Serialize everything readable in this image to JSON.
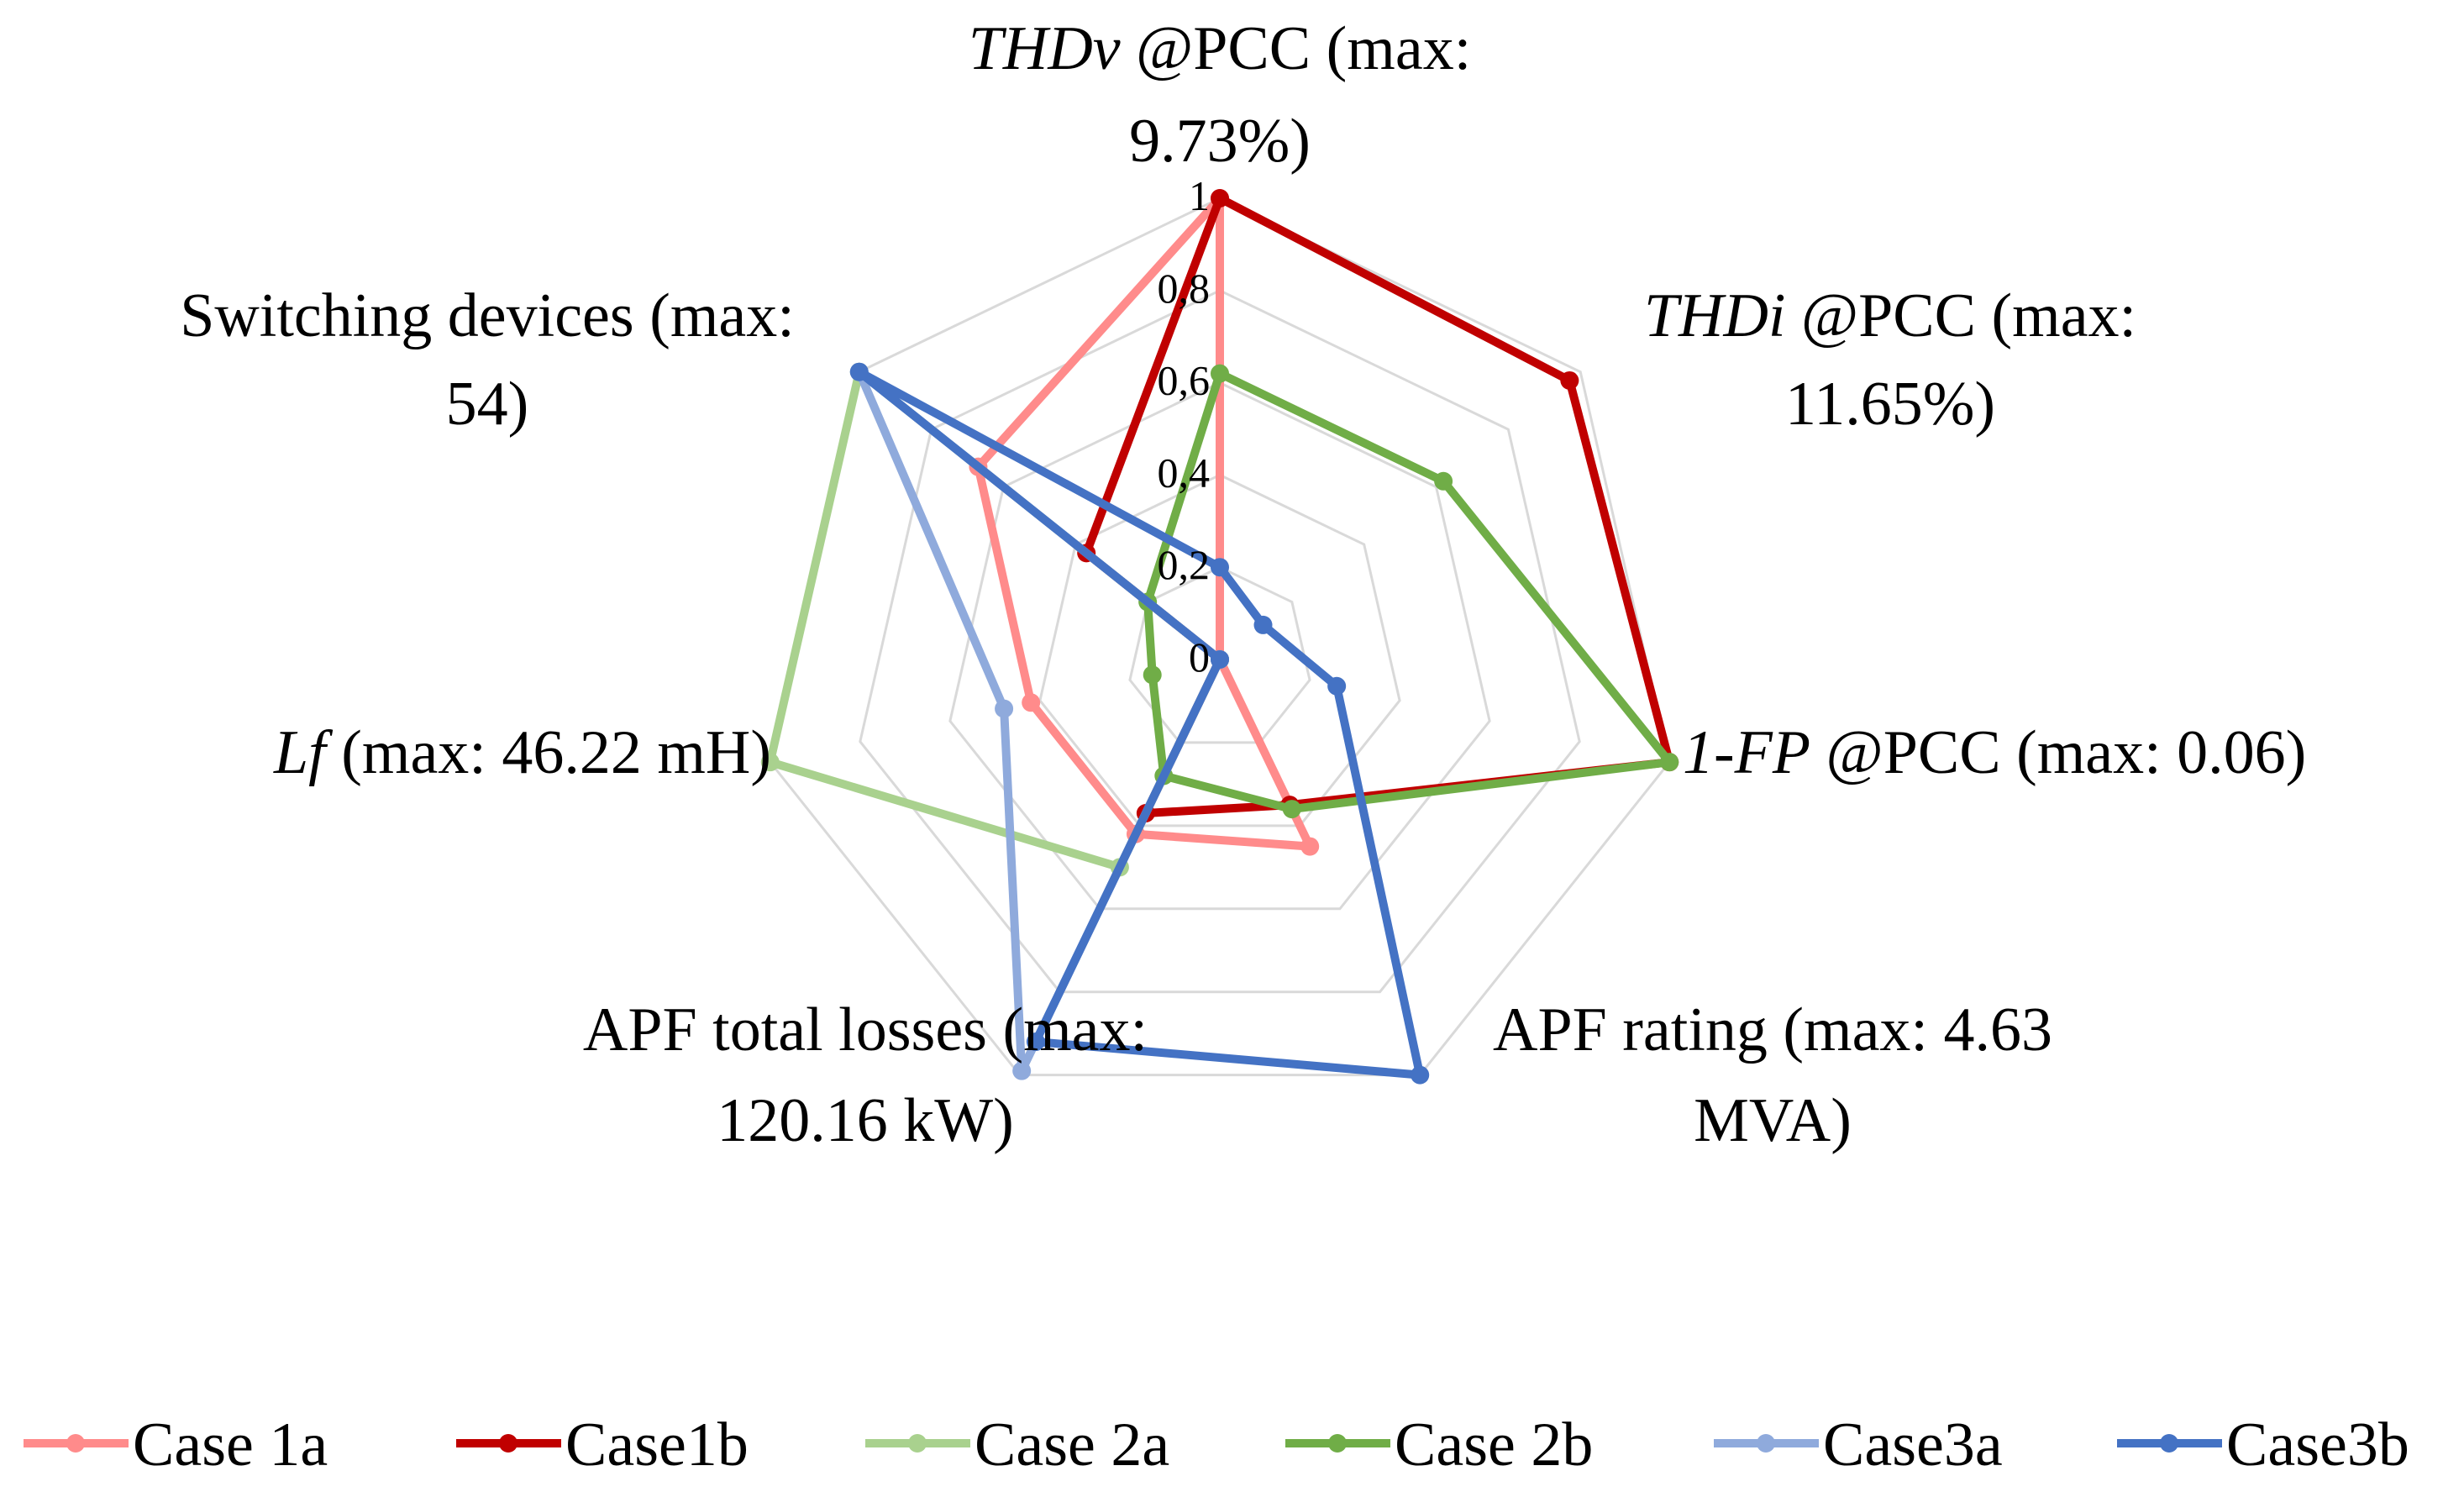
{
  "chart_data": {
    "type": "radar",
    "title": "",
    "axes": [
      {
        "italic": "THDv",
        "rest": " @PCC (max:",
        "line2": "9.73%)"
      },
      {
        "italic": "THDi",
        "rest": " @PCC (max:",
        "line2": "11.65%)"
      },
      {
        "italic": "1-FP",
        "rest": " @PCC (max: 0.06)",
        "line2": ""
      },
      {
        "italic": "",
        "rest": "APF rating (max: 4.63",
        "line2": "MVA)"
      },
      {
        "italic": "",
        "rest": "APF total losses (max:",
        "line2": "120.16 kW)"
      },
      {
        "italic": "Lf",
        "rest": " (max: 46.22 mH)",
        "line2": ""
      },
      {
        "italic": "",
        "rest": "Switching devices (max:",
        "line2": "54)"
      }
    ],
    "ticks": [
      "0",
      "0,2",
      "0,4",
      "0,6",
      "0,8",
      "1"
    ],
    "tick_values": [
      0,
      0.2,
      0.4,
      0.6,
      0.8,
      1
    ],
    "range": [
      0,
      1
    ],
    "series": [
      {
        "name": "Case 1a",
        "color": "#ff8b8b",
        "values": [
          1.0,
          0.0,
          0.0,
          0.45,
          0.42,
          0.42,
          0.67
        ]
      },
      {
        "name": "Case1b",
        "color": "#c00000",
        "values": [
          1.0,
          0.97,
          1.0,
          0.35,
          0.37,
          0.0,
          0.37
        ]
      },
      {
        "name": "Case 2a",
        "color": "#a9d18e",
        "values": [
          0.0,
          0.0,
          0.0,
          0.0,
          0.5,
          1.0,
          1.0
        ]
      },
      {
        "name": "Case 2b",
        "color": "#70ad47",
        "values": [
          0.62,
          0.62,
          1.0,
          0.36,
          0.28,
          0.15,
          0.2
        ]
      },
      {
        "name": "Case3a",
        "color": "#8faadc",
        "values": [
          0.0,
          0.0,
          0.0,
          0.0,
          0.99,
          0.48,
          1.0
        ]
      },
      {
        "name": "Case3b",
        "color": "#4472c4",
        "values": [
          0.2,
          0.12,
          0.26,
          1.0,
          0.92,
          0.0,
          1.0
        ]
      }
    ]
  }
}
